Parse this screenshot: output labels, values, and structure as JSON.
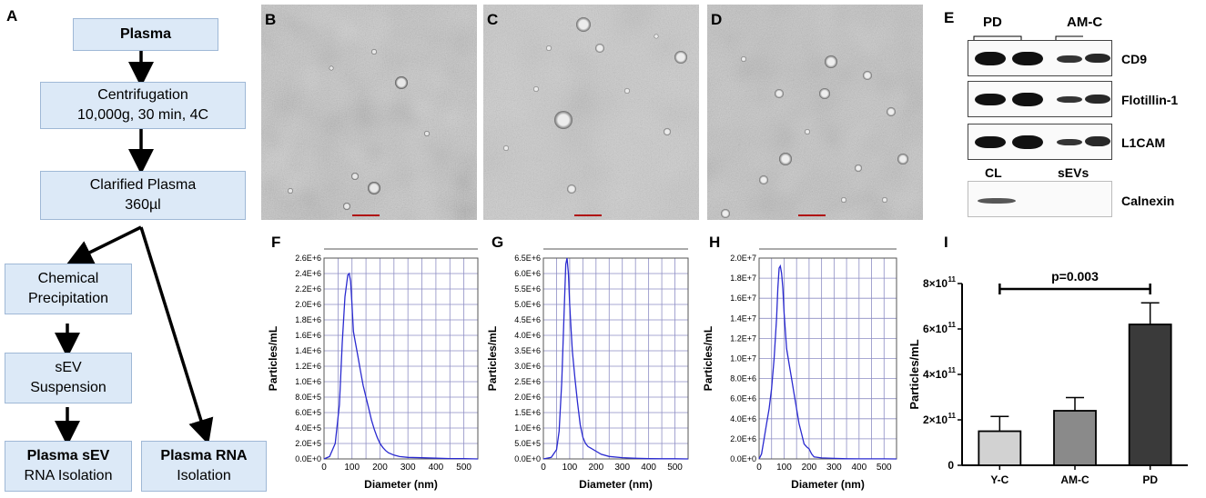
{
  "panels": {
    "A": "A",
    "B": "B",
    "C": "C",
    "D": "D",
    "E": "E",
    "F": "F",
    "G": "G",
    "H": "H",
    "I": "I"
  },
  "flowchart": {
    "plasma": "Plasma",
    "centrifugation_line1": "Centrifugation",
    "centrifugation_line2": "10,000g, 30 min, 4C",
    "clarified_line1": "Clarified Plasma",
    "clarified_line2": "360µl",
    "chemical_line1": "Chemical",
    "chemical_line2": "Precipitation",
    "sev_line1": "sEV",
    "sev_line2": "Suspension",
    "plasma_sev_line1": "Plasma sEV",
    "plasma_sev_line2": "RNA Isolation",
    "plasma_rna_line1": "Plasma RNA",
    "plasma_rna_line2": "Isolation"
  },
  "western_blot": {
    "group_pd": "PD",
    "group_amc": "AM-C",
    "rows": [
      "CD9",
      "Flotillin-1",
      "L1CAM",
      "Calnexin"
    ],
    "cl_label": "CL",
    "sevs_label": "sEVs",
    "band_intensity": {
      "CD9": [
        1.0,
        1.0,
        0.55,
        0.65
      ],
      "Flotillin-1": [
        0.95,
        1.0,
        0.45,
        0.6
      ],
      "L1CAM": [
        0.95,
        1.0,
        0.45,
        0.6
      ],
      "Calnexin": [
        0.5,
        0.0
      ]
    }
  },
  "chart_data": [
    {
      "type": "line",
      "panel": "F",
      "xlabel": "Diameter (nm)",
      "ylabel": "Particles/mL",
      "xlim": [
        0,
        550
      ],
      "ylim": [
        0,
        2600000
      ],
      "x_ticks": [
        "0",
        "100",
        "200",
        "300",
        "400",
        "500"
      ],
      "y_ticks": [
        "0.0E+0",
        "2.0E+5",
        "4.0E+5",
        "6.0E+5",
        "8.0E+5",
        "1.0E+6",
        "1.2E+6",
        "1.4E+6",
        "1.6E+6",
        "1.8E+6",
        "2.0E+6",
        "2.2E+6",
        "2.4E+6",
        "2.6E+6"
      ],
      "y_tick_values": [
        0,
        200000,
        400000,
        600000,
        800000,
        1000000,
        1200000,
        1400000,
        1600000,
        1800000,
        2000000,
        2200000,
        2400000,
        2600000
      ],
      "color": "#2a2ad0",
      "x": [
        0,
        20,
        40,
        55,
        65,
        75,
        85,
        90,
        95,
        100,
        105,
        110,
        120,
        130,
        140,
        150,
        160,
        170,
        180,
        190,
        200,
        210,
        220,
        230,
        250,
        270,
        300,
        350,
        400,
        450,
        500,
        550
      ],
      "y": [
        0,
        30000,
        200000,
        700000,
        1500000,
        2100000,
        2380000,
        2400000,
        2300000,
        2000000,
        1650000,
        1550000,
        1350000,
        1150000,
        950000,
        800000,
        650000,
        500000,
        380000,
        280000,
        200000,
        150000,
        110000,
        80000,
        50000,
        30000,
        20000,
        15000,
        10000,
        5000,
        5000,
        0
      ]
    },
    {
      "type": "line",
      "panel": "G",
      "xlabel": "Diameter (nm)",
      "ylabel": "Particles/mL",
      "xlim": [
        0,
        550
      ],
      "ylim": [
        0,
        6500000
      ],
      "x_ticks": [
        "0",
        "100",
        "200",
        "300",
        "400",
        "500"
      ],
      "y_ticks": [
        "0.0E+0",
        "5.0E+5",
        "1.0E+6",
        "1.5E+6",
        "2.0E+6",
        "2.5E+6",
        "3.0E+6",
        "3.5E+6",
        "4.0E+6",
        "4.5E+6",
        "5.0E+6",
        "5.5E+6",
        "6.0E+6",
        "6.5E+6"
      ],
      "y_tick_values": [
        0,
        500000,
        1000000,
        1500000,
        2000000,
        2500000,
        3000000,
        3500000,
        4000000,
        4500000,
        5000000,
        5500000,
        6000000,
        6500000
      ],
      "color": "#2a2ad0",
      "x": [
        0,
        30,
        50,
        60,
        70,
        78,
        85,
        90,
        95,
        100,
        105,
        110,
        120,
        130,
        140,
        150,
        160,
        170,
        180,
        200,
        220,
        250,
        300,
        350,
        400,
        450,
        500,
        550
      ],
      "y": [
        0,
        50000,
        300000,
        900000,
        2500000,
        4500000,
        6300000,
        6500000,
        6000000,
        5000000,
        4200000,
        3500000,
        2600000,
        1800000,
        1100000,
        700000,
        500000,
        400000,
        350000,
        250000,
        150000,
        80000,
        40000,
        20000,
        10000,
        5000,
        5000,
        0
      ]
    },
    {
      "type": "line",
      "panel": "H",
      "xlabel": "Diameter (nm)",
      "ylabel": "Particles/mL",
      "xlim": [
        0,
        550
      ],
      "ylim": [
        0,
        20000000
      ],
      "x_ticks": [
        "0",
        "100",
        "200",
        "300",
        "400",
        "500"
      ],
      "y_ticks": [
        "0.0E+0",
        "2.0E+6",
        "4.0E+6",
        "6.0E+6",
        "8.0E+6",
        "1.0E+7",
        "1.2E+7",
        "1.4E+7",
        "1.6E+7",
        "1.8E+7",
        "2.0E+7"
      ],
      "y_tick_values": [
        0,
        2000000,
        4000000,
        6000000,
        8000000,
        10000000,
        12000000,
        14000000,
        16000000,
        18000000,
        20000000
      ],
      "color": "#2a2ad0",
      "x": [
        0,
        10,
        20,
        30,
        40,
        50,
        60,
        70,
        75,
        80,
        85,
        90,
        95,
        100,
        110,
        120,
        130,
        140,
        150,
        160,
        170,
        180,
        190,
        200,
        210,
        220,
        250,
        300,
        350,
        400,
        450,
        500,
        550
      ],
      "y": [
        0,
        500000,
        2000000,
        3500000,
        5000000,
        7000000,
        10000000,
        14000000,
        17000000,
        19000000,
        19200000,
        18500000,
        17000000,
        14500000,
        11000000,
        9500000,
        8000000,
        6500000,
        5000000,
        3500000,
        2500000,
        1500000,
        1200000,
        1000000,
        500000,
        200000,
        100000,
        50000,
        20000,
        10000,
        5000,
        5000,
        0
      ]
    },
    {
      "type": "bar",
      "panel": "I",
      "ylabel": "Particles/mL",
      "categories": [
        "Y-C",
        "AM-C",
        "PD"
      ],
      "values": [
        150000000000,
        240000000000,
        620000000000
      ],
      "errors": [
        65000000000,
        58000000000,
        95000000000
      ],
      "colors": [
        "#d2d2d2",
        "#8a8a8a",
        "#3a3a3a"
      ],
      "ylim": [
        0,
        800000000000
      ],
      "y_tick_values": [
        0,
        200000000000,
        400000000000,
        600000000000,
        800000000000
      ],
      "y_ticks_mantissa": [
        "0",
        "2×10",
        "4×10",
        "6×10",
        "8×10"
      ],
      "y_tick_exponent": "11",
      "annotation": "p=0.003"
    }
  ]
}
